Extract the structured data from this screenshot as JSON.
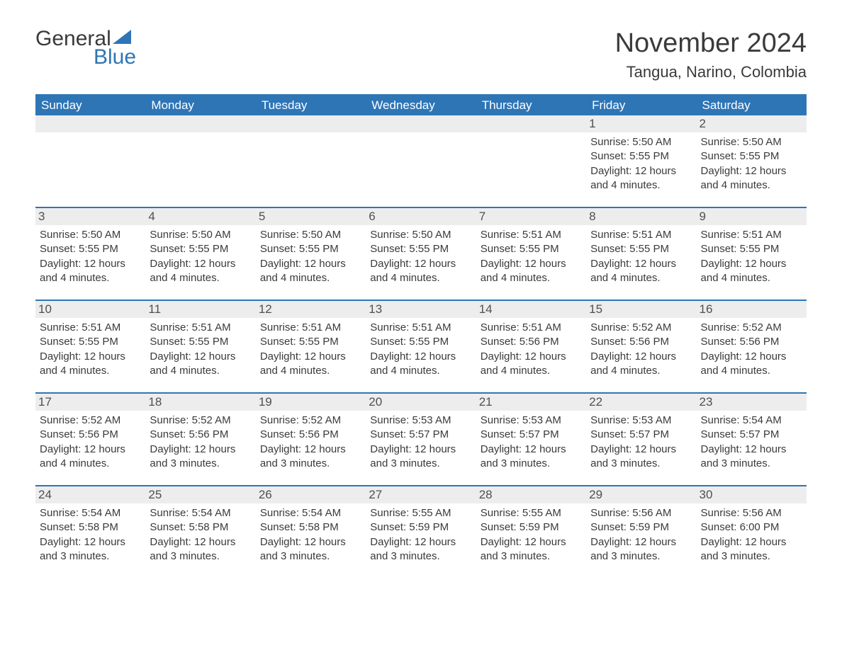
{
  "logo": {
    "word1": "General",
    "word2": "Blue",
    "color_blue": "#2e75b6",
    "color_dark": "#3a3a3a"
  },
  "title": "November 2024",
  "location": "Tangua, Narino, Colombia",
  "weekdays": [
    "Sunday",
    "Monday",
    "Tuesday",
    "Wednesday",
    "Thursday",
    "Friday",
    "Saturday"
  ],
  "colors": {
    "header_bg": "#2e75b6",
    "header_text": "#ffffff",
    "daynum_bg": "#ededed",
    "row_divider": "#2e75b6",
    "body_text": "#3a3a3a"
  },
  "weeks": [
    [
      {
        "day": "",
        "sunrise": "",
        "sunset": "",
        "daylight": ""
      },
      {
        "day": "",
        "sunrise": "",
        "sunset": "",
        "daylight": ""
      },
      {
        "day": "",
        "sunrise": "",
        "sunset": "",
        "daylight": ""
      },
      {
        "day": "",
        "sunrise": "",
        "sunset": "",
        "daylight": ""
      },
      {
        "day": "",
        "sunrise": "",
        "sunset": "",
        "daylight": ""
      },
      {
        "day": "1",
        "sunrise": "Sunrise: 5:50 AM",
        "sunset": "Sunset: 5:55 PM",
        "daylight": "Daylight: 12 hours and 4 minutes."
      },
      {
        "day": "2",
        "sunrise": "Sunrise: 5:50 AM",
        "sunset": "Sunset: 5:55 PM",
        "daylight": "Daylight: 12 hours and 4 minutes."
      }
    ],
    [
      {
        "day": "3",
        "sunrise": "Sunrise: 5:50 AM",
        "sunset": "Sunset: 5:55 PM",
        "daylight": "Daylight: 12 hours and 4 minutes."
      },
      {
        "day": "4",
        "sunrise": "Sunrise: 5:50 AM",
        "sunset": "Sunset: 5:55 PM",
        "daylight": "Daylight: 12 hours and 4 minutes."
      },
      {
        "day": "5",
        "sunrise": "Sunrise: 5:50 AM",
        "sunset": "Sunset: 5:55 PM",
        "daylight": "Daylight: 12 hours and 4 minutes."
      },
      {
        "day": "6",
        "sunrise": "Sunrise: 5:50 AM",
        "sunset": "Sunset: 5:55 PM",
        "daylight": "Daylight: 12 hours and 4 minutes."
      },
      {
        "day": "7",
        "sunrise": "Sunrise: 5:51 AM",
        "sunset": "Sunset: 5:55 PM",
        "daylight": "Daylight: 12 hours and 4 minutes."
      },
      {
        "day": "8",
        "sunrise": "Sunrise: 5:51 AM",
        "sunset": "Sunset: 5:55 PM",
        "daylight": "Daylight: 12 hours and 4 minutes."
      },
      {
        "day": "9",
        "sunrise": "Sunrise: 5:51 AM",
        "sunset": "Sunset: 5:55 PM",
        "daylight": "Daylight: 12 hours and 4 minutes."
      }
    ],
    [
      {
        "day": "10",
        "sunrise": "Sunrise: 5:51 AM",
        "sunset": "Sunset: 5:55 PM",
        "daylight": "Daylight: 12 hours and 4 minutes."
      },
      {
        "day": "11",
        "sunrise": "Sunrise: 5:51 AM",
        "sunset": "Sunset: 5:55 PM",
        "daylight": "Daylight: 12 hours and 4 minutes."
      },
      {
        "day": "12",
        "sunrise": "Sunrise: 5:51 AM",
        "sunset": "Sunset: 5:55 PM",
        "daylight": "Daylight: 12 hours and 4 minutes."
      },
      {
        "day": "13",
        "sunrise": "Sunrise: 5:51 AM",
        "sunset": "Sunset: 5:55 PM",
        "daylight": "Daylight: 12 hours and 4 minutes."
      },
      {
        "day": "14",
        "sunrise": "Sunrise: 5:51 AM",
        "sunset": "Sunset: 5:56 PM",
        "daylight": "Daylight: 12 hours and 4 minutes."
      },
      {
        "day": "15",
        "sunrise": "Sunrise: 5:52 AM",
        "sunset": "Sunset: 5:56 PM",
        "daylight": "Daylight: 12 hours and 4 minutes."
      },
      {
        "day": "16",
        "sunrise": "Sunrise: 5:52 AM",
        "sunset": "Sunset: 5:56 PM",
        "daylight": "Daylight: 12 hours and 4 minutes."
      }
    ],
    [
      {
        "day": "17",
        "sunrise": "Sunrise: 5:52 AM",
        "sunset": "Sunset: 5:56 PM",
        "daylight": "Daylight: 12 hours and 4 minutes."
      },
      {
        "day": "18",
        "sunrise": "Sunrise: 5:52 AM",
        "sunset": "Sunset: 5:56 PM",
        "daylight": "Daylight: 12 hours and 3 minutes."
      },
      {
        "day": "19",
        "sunrise": "Sunrise: 5:52 AM",
        "sunset": "Sunset: 5:56 PM",
        "daylight": "Daylight: 12 hours and 3 minutes."
      },
      {
        "day": "20",
        "sunrise": "Sunrise: 5:53 AM",
        "sunset": "Sunset: 5:57 PM",
        "daylight": "Daylight: 12 hours and 3 minutes."
      },
      {
        "day": "21",
        "sunrise": "Sunrise: 5:53 AM",
        "sunset": "Sunset: 5:57 PM",
        "daylight": "Daylight: 12 hours and 3 minutes."
      },
      {
        "day": "22",
        "sunrise": "Sunrise: 5:53 AM",
        "sunset": "Sunset: 5:57 PM",
        "daylight": "Daylight: 12 hours and 3 minutes."
      },
      {
        "day": "23",
        "sunrise": "Sunrise: 5:54 AM",
        "sunset": "Sunset: 5:57 PM",
        "daylight": "Daylight: 12 hours and 3 minutes."
      }
    ],
    [
      {
        "day": "24",
        "sunrise": "Sunrise: 5:54 AM",
        "sunset": "Sunset: 5:58 PM",
        "daylight": "Daylight: 12 hours and 3 minutes."
      },
      {
        "day": "25",
        "sunrise": "Sunrise: 5:54 AM",
        "sunset": "Sunset: 5:58 PM",
        "daylight": "Daylight: 12 hours and 3 minutes."
      },
      {
        "day": "26",
        "sunrise": "Sunrise: 5:54 AM",
        "sunset": "Sunset: 5:58 PM",
        "daylight": "Daylight: 12 hours and 3 minutes."
      },
      {
        "day": "27",
        "sunrise": "Sunrise: 5:55 AM",
        "sunset": "Sunset: 5:59 PM",
        "daylight": "Daylight: 12 hours and 3 minutes."
      },
      {
        "day": "28",
        "sunrise": "Sunrise: 5:55 AM",
        "sunset": "Sunset: 5:59 PM",
        "daylight": "Daylight: 12 hours and 3 minutes."
      },
      {
        "day": "29",
        "sunrise": "Sunrise: 5:56 AM",
        "sunset": "Sunset: 5:59 PM",
        "daylight": "Daylight: 12 hours and 3 minutes."
      },
      {
        "day": "30",
        "sunrise": "Sunrise: 5:56 AM",
        "sunset": "Sunset: 6:00 PM",
        "daylight": "Daylight: 12 hours and 3 minutes."
      }
    ]
  ]
}
